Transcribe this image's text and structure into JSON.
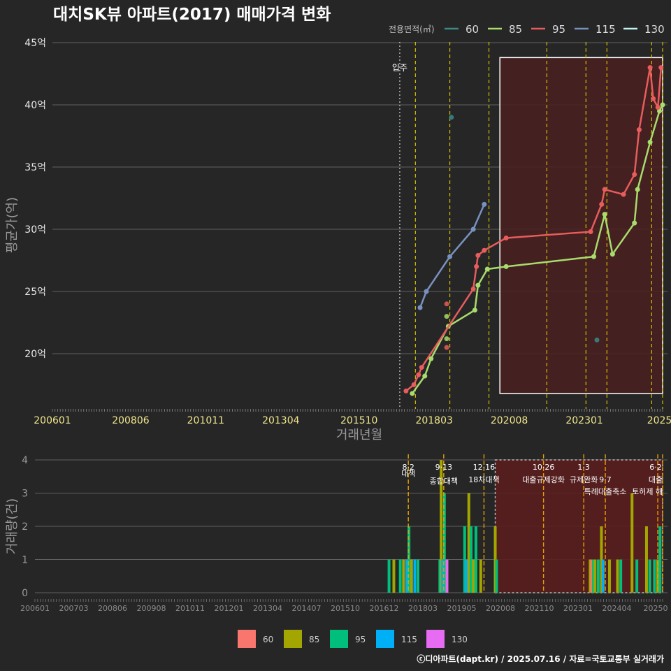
{
  "title": "대치SK뷰 아파트(2017) 매매가격 변화",
  "credit": "ⓒ디아파트(dapt.kr) / 2025.07.16 / 자료=국토교통부 실거래가",
  "legend_title": "전용면적(㎡)",
  "legend_items": [
    {
      "label": "60",
      "color": "#3a8a8a"
    },
    {
      "label": "85",
      "color": "#a8dc6c"
    },
    {
      "label": "95",
      "color": "#e85c5c"
    },
    {
      "label": "115",
      "color": "#7891c0"
    },
    {
      "label": "130",
      "color": "#bff2f2"
    }
  ],
  "colors": {
    "grid": "#606060",
    "dashed_event": "#d4c000",
    "occupancy": "#d0d0d0",
    "box_fill": "#4a2020",
    "box_stroke": "#ffffff"
  },
  "chart_data": [
    {
      "type": "line",
      "title": "대치SK뷰 아파트(2017) 매매가격 변화",
      "xlabel": "거래년월",
      "ylabel": "평균가(억)",
      "x_range": [
        2006.0,
        2025.5
      ],
      "ylim": [
        15,
        45
      ],
      "y_ticks": [
        20,
        25,
        30,
        35,
        40,
        45
      ],
      "y_tick_labels": [
        "20억",
        "25억",
        "30억",
        "35억",
        "40억",
        "45억"
      ],
      "x_ticks": [
        2006.0,
        2008.5,
        2010.9,
        2013.3,
        2015.8,
        2018.2,
        2020.6,
        2023.0,
        2025.4
      ],
      "x_tick_labels": [
        "200601",
        "200806",
        "201011",
        "201304",
        "201510",
        "201803",
        "202008",
        "202301",
        "2025"
      ],
      "occupancy": {
        "x": 2017.1,
        "label": "입주"
      },
      "event_lines": [
        2017.6,
        2018.7,
        2019.95,
        2021.8,
        2023.05,
        2023.72,
        2025.15,
        2025.5
      ],
      "highlight_period": {
        "x_start": 2020.3,
        "x_end": 2025.5,
        "y_start": 16.8,
        "y_end": 43.8
      },
      "series": [
        {
          "name": "85",
          "x": [
            2017.5,
            2017.9,
            2018.1,
            2018.65,
            2019.5,
            2019.6,
            2019.9,
            2020.5,
            2023.3,
            2023.65,
            2023.9,
            2024.6,
            2024.7,
            2025.1,
            2025.4,
            2025.5
          ],
          "y": [
            16.8,
            18.2,
            19.6,
            22.2,
            23.5,
            25.5,
            26.8,
            27.0,
            27.8,
            31.2,
            28.0,
            30.5,
            33.2,
            37.0,
            39.5,
            40.0
          ]
        },
        {
          "name": "95",
          "x": [
            2017.3,
            2017.55,
            2017.7,
            2017.8,
            2019.45,
            2019.55,
            2019.6,
            2019.8,
            2020.5,
            2023.2,
            2023.55,
            2023.65,
            2024.25,
            2024.6,
            2024.75,
            2025.1,
            2025.2,
            2025.35,
            2025.45
          ],
          "y": [
            17.0,
            17.5,
            18.3,
            18.9,
            25.2,
            27.0,
            27.9,
            28.3,
            29.3,
            29.8,
            32.0,
            33.2,
            32.8,
            34.4,
            38.0,
            43.0,
            40.5,
            39.8,
            43.0
          ]
        },
        {
          "name": "115",
          "x": [
            2017.75,
            2017.95,
            2018.7,
            2019.45,
            2019.8
          ],
          "y": [
            23.7,
            25.0,
            27.8,
            30.0,
            32.0
          ]
        }
      ],
      "single_points": [
        {
          "series": "85",
          "x": 2018.6,
          "y": 23.0
        },
        {
          "series": "85",
          "x": 2018.6,
          "y": 21.2
        },
        {
          "series": "95",
          "x": 2018.6,
          "y": 24.0
        },
        {
          "series": "95",
          "x": 2018.6,
          "y": 20.5
        },
        {
          "series": "60",
          "x": 2018.75,
          "y": 39.0
        },
        {
          "series": "60",
          "x": 2023.4,
          "y": 21.1
        }
      ]
    },
    {
      "type": "bar",
      "ylabel": "거래량(건)",
      "ylim": [
        0,
        4
      ],
      "y_ticks": [
        0,
        1,
        2,
        3,
        4
      ],
      "x_tick_labels": [
        "200601",
        "200703",
        "200806",
        "200908",
        "201011",
        "201201",
        "201304",
        "201407",
        "201510",
        "201612",
        "201803",
        "201905",
        "202008",
        "202110",
        "202301",
        "202404",
        "20250"
      ],
      "legend": [
        {
          "label": "60",
          "color": "#f8766d"
        },
        {
          "label": "85",
          "color": "#a3a500"
        },
        {
          "label": "95",
          "color": "#00bf7d"
        },
        {
          "label": "115",
          "color": "#00b0f6"
        },
        {
          "label": "130",
          "color": "#e76bf3"
        }
      ],
      "events": [
        {
          "x": 2017.6,
          "date": "8·2",
          "label": "대책"
        },
        {
          "x": 2018.7,
          "date": "9·13",
          "label": "종합대책"
        },
        {
          "x": 2019.95,
          "date": "12·16",
          "label": "18차대책"
        },
        {
          "x": 2021.8,
          "date": "10·26",
          "label": "대출규제강화"
        },
        {
          "x": 2023.05,
          "date": "1·3",
          "label": "규제완화"
        },
        {
          "x": 2023.72,
          "date": "9·7",
          "label": "특례대출축소"
        },
        {
          "x": 2025.35,
          "date": "",
          "label": "토허제 해"
        },
        {
          "x": 2025.5,
          "date": "6·2",
          "label": "대출"
        }
      ],
      "highlight_period": {
        "x_start": 2020.3,
        "x_end": 2025.5
      },
      "bars": [
        {
          "x": 2017.0,
          "values": [
            0,
            0,
            1,
            0,
            0
          ]
        },
        {
          "x": 2017.15,
          "values": [
            0,
            1,
            0,
            0,
            0
          ]
        },
        {
          "x": 2017.35,
          "values": [
            0,
            0,
            1,
            0,
            0
          ]
        },
        {
          "x": 2017.45,
          "values": [
            0,
            1,
            0,
            0,
            0
          ]
        },
        {
          "x": 2017.55,
          "values": [
            0,
            0,
            0,
            1,
            0
          ]
        },
        {
          "x": 2017.62,
          "values": [
            0,
            0,
            2,
            0,
            0
          ]
        },
        {
          "x": 2017.7,
          "values": [
            0,
            1,
            0,
            0,
            0
          ]
        },
        {
          "x": 2017.8,
          "values": [
            0,
            0,
            0,
            1,
            0
          ]
        },
        {
          "x": 2017.9,
          "values": [
            0,
            0,
            1,
            0,
            0
          ]
        },
        {
          "x": 2018.58,
          "values": [
            0,
            0,
            1,
            0,
            0
          ]
        },
        {
          "x": 2018.62,
          "values": [
            0,
            4,
            0,
            0,
            0
          ]
        },
        {
          "x": 2018.66,
          "values": [
            0,
            0,
            0,
            1,
            0
          ]
        },
        {
          "x": 2018.72,
          "values": [
            0,
            0,
            3,
            0,
            0
          ]
        },
        {
          "x": 2018.8,
          "values": [
            0,
            0,
            0,
            0,
            1
          ]
        },
        {
          "x": 2019.35,
          "values": [
            0,
            0,
            2,
            0,
            0
          ]
        },
        {
          "x": 2019.4,
          "values": [
            0,
            0,
            0,
            1,
            0
          ]
        },
        {
          "x": 2019.48,
          "values": [
            0,
            3,
            0,
            0,
            0
          ]
        },
        {
          "x": 2019.55,
          "values": [
            0,
            0,
            2,
            0,
            0
          ]
        },
        {
          "x": 2019.62,
          "values": [
            0,
            1,
            0,
            0,
            0
          ]
        },
        {
          "x": 2019.7,
          "values": [
            0,
            0,
            2,
            0,
            0
          ]
        },
        {
          "x": 2019.85,
          "values": [
            0,
            1,
            0,
            0,
            0
          ]
        },
        {
          "x": 2020.3,
          "values": [
            0,
            2,
            0,
            0,
            0
          ]
        },
        {
          "x": 2020.34,
          "values": [
            0,
            0,
            1,
            0,
            0
          ]
        },
        {
          "x": 2023.25,
          "values": [
            0,
            1,
            0,
            0,
            0
          ]
        },
        {
          "x": 2023.3,
          "values": [
            1,
            0,
            0,
            0,
            0
          ]
        },
        {
          "x": 2023.35,
          "values": [
            0,
            0,
            1,
            0,
            0
          ]
        },
        {
          "x": 2023.4,
          "values": [
            0,
            1,
            0,
            0,
            0
          ]
        },
        {
          "x": 2023.5,
          "values": [
            0,
            0,
            1,
            0,
            0
          ]
        },
        {
          "x": 2023.6,
          "values": [
            0,
            2,
            0,
            0,
            0
          ]
        },
        {
          "x": 2023.65,
          "values": [
            0,
            0,
            0,
            1,
            0
          ]
        },
        {
          "x": 2023.85,
          "values": [
            0,
            1,
            0,
            0,
            0
          ]
        },
        {
          "x": 2024.1,
          "values": [
            0,
            1,
            0,
            0,
            0
          ]
        },
        {
          "x": 2024.2,
          "values": [
            0,
            0,
            1,
            0,
            0
          ]
        },
        {
          "x": 2024.55,
          "values": [
            0,
            3,
            0,
            0,
            0
          ]
        },
        {
          "x": 2024.7,
          "values": [
            0,
            0,
            1,
            0,
            0
          ]
        },
        {
          "x": 2025.0,
          "values": [
            0,
            2,
            0,
            0,
            0
          ]
        },
        {
          "x": 2025.1,
          "values": [
            0,
            0,
            1,
            0,
            0
          ]
        },
        {
          "x": 2025.25,
          "values": [
            0,
            0,
            1,
            0,
            0
          ]
        },
        {
          "x": 2025.35,
          "values": [
            0,
            1,
            0,
            0,
            0
          ]
        },
        {
          "x": 2025.42,
          "values": [
            0,
            0,
            2,
            0,
            0
          ]
        }
      ]
    }
  ]
}
